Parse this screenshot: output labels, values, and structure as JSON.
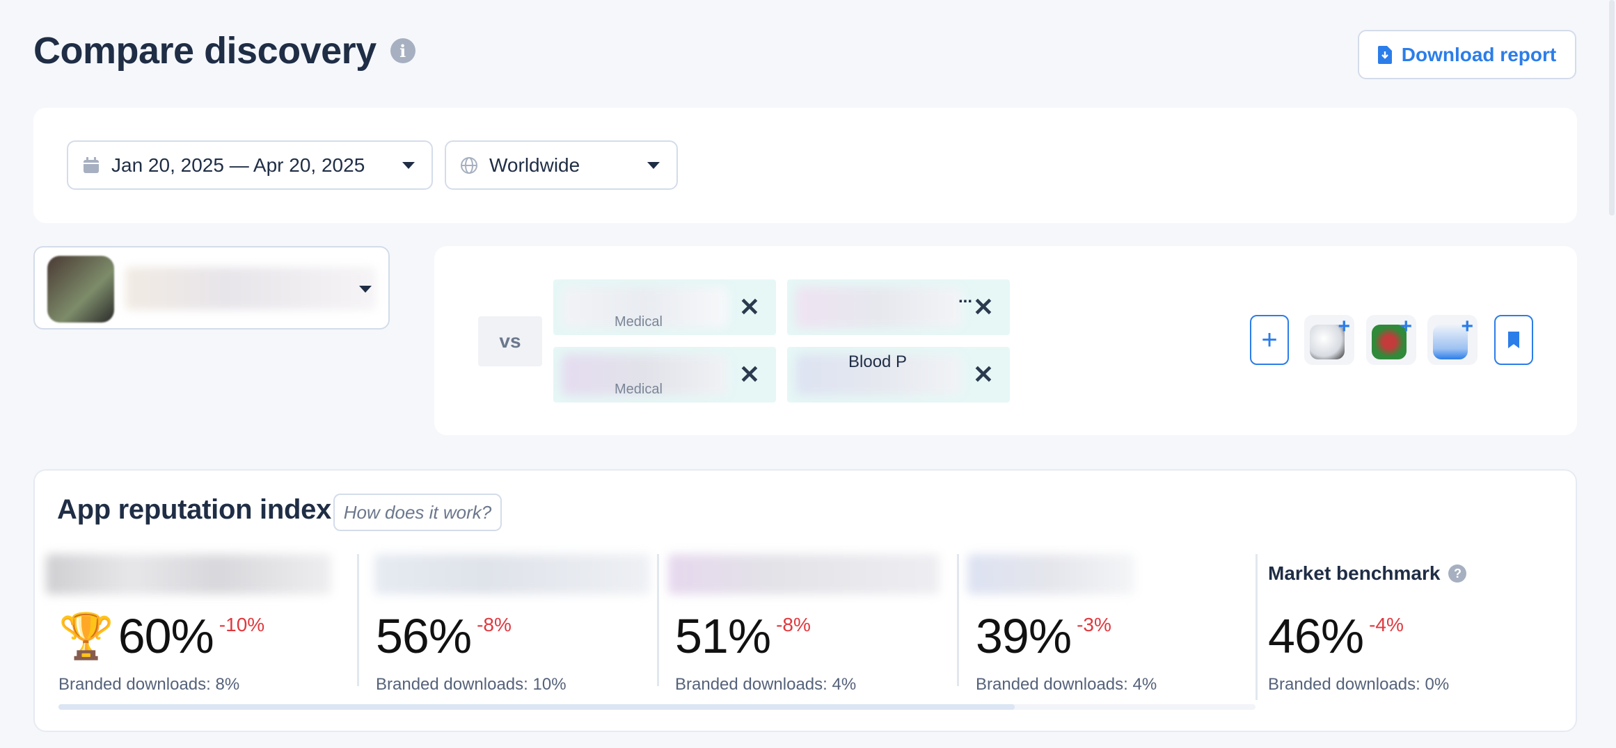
{
  "header": {
    "title": "Compare discovery",
    "download_label": "Download report"
  },
  "filters": {
    "date_range": "Jan 20, 2025 — Apr 20, 2025",
    "region": "Worldwide"
  },
  "compare": {
    "vs_label": "vs",
    "chips": [
      {
        "fragment_a": "Medical",
        "fragment_b": ""
      },
      {
        "fragment_a": "",
        "fragment_b": "..."
      },
      {
        "fragment_a": "Medical",
        "fragment_b": ""
      },
      {
        "fragment_a": "Blood P",
        "fragment_b": ""
      }
    ],
    "close_glyph": "✕"
  },
  "reputation": {
    "title": "App reputation index",
    "how_label": "How does it work?",
    "items": [
      {
        "pct": "60%",
        "delta": "-10%",
        "branded": "Branded downloads: 8%"
      },
      {
        "pct": "56%",
        "delta": "-8%",
        "branded": "Branded downloads: 10%"
      },
      {
        "pct": "51%",
        "delta": "-8%",
        "branded": "Branded downloads: 4%"
      },
      {
        "pct": "39%",
        "delta": "-3%",
        "branded": "Branded downloads: 4%"
      }
    ],
    "benchmark": {
      "title": "Market benchmark",
      "pct": "46%",
      "delta": "-4%",
      "branded": "Branded downloads: 0%"
    }
  },
  "colors": {
    "accent": "#2b7de9",
    "negative": "#e0383e",
    "chip_bg": "#e6f7f6"
  },
  "icons": [
    "info-icon",
    "download-icon",
    "calendar-icon",
    "globe-icon",
    "close-icon",
    "plus-icon",
    "bookmark-icon",
    "trophy-icon",
    "question-icon"
  ]
}
